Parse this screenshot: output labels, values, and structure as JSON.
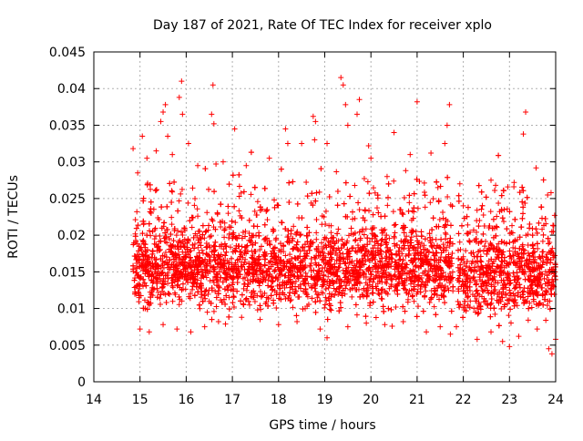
{
  "chart_data": {
    "type": "scatter",
    "title": "Day 187 of 2021, Rate Of TEC Index for receiver xplo",
    "xlabel": "GPS time / hours",
    "ylabel": "ROTI / TECUs",
    "xlim": [
      14,
      24
    ],
    "ylim": [
      0,
      0.045
    ],
    "x_ticks": [
      "14",
      "15",
      "16",
      "17",
      "18",
      "19",
      "20",
      "21",
      "22",
      "23",
      "24"
    ],
    "y_ticks": [
      "0",
      "0.005",
      "0.01",
      "0.015",
      "0.02",
      "0.025",
      "0.03",
      "0.035",
      "0.04",
      "0.045"
    ],
    "grid": true,
    "marker": "plus",
    "color": "#ff0000",
    "series": [
      {
        "name": "ROTI",
        "points": [
          [
            14.85,
            0.0318
          ],
          [
            14.95,
            0.0285
          ],
          [
            15.05,
            0.0335
          ],
          [
            15.15,
            0.0305
          ],
          [
            15.35,
            0.0315
          ],
          [
            15.45,
            0.0355
          ],
          [
            15.5,
            0.0368
          ],
          [
            15.55,
            0.0378
          ],
          [
            15.6,
            0.0335
          ],
          [
            15.7,
            0.031
          ],
          [
            15.85,
            0.0388
          ],
          [
            15.9,
            0.041
          ],
          [
            15.92,
            0.0365
          ],
          [
            16.05,
            0.0325
          ],
          [
            16.25,
            0.0295
          ],
          [
            16.55,
            0.0365
          ],
          [
            16.58,
            0.0405
          ],
          [
            16.6,
            0.0352
          ],
          [
            16.8,
            0.03
          ],
          [
            17.05,
            0.0345
          ],
          [
            17.3,
            0.0295
          ],
          [
            17.8,
            0.0305
          ],
          [
            18.15,
            0.0345
          ],
          [
            18.2,
            0.0325
          ],
          [
            18.5,
            0.0325
          ],
          [
            18.75,
            0.0362
          ],
          [
            18.8,
            0.0355
          ],
          [
            18.78,
            0.033
          ],
          [
            19.05,
            0.0325
          ],
          [
            19.35,
            0.0415
          ],
          [
            19.4,
            0.0405
          ],
          [
            19.45,
            0.0378
          ],
          [
            19.5,
            0.035
          ],
          [
            19.7,
            0.0365
          ],
          [
            19.75,
            0.0385
          ],
          [
            19.95,
            0.0322
          ],
          [
            20.0,
            0.0305
          ],
          [
            20.35,
            0.028
          ],
          [
            20.5,
            0.034
          ],
          [
            20.85,
            0.031
          ],
          [
            21.0,
            0.0382
          ],
          [
            21.3,
            0.0312
          ],
          [
            21.45,
            0.0265
          ],
          [
            21.6,
            0.0325
          ],
          [
            21.7,
            0.0378
          ],
          [
            21.65,
            0.035
          ],
          [
            22.6,
            0.0275
          ],
          [
            22.7,
            0.0268
          ],
          [
            23.1,
            0.0272
          ],
          [
            23.35,
            0.0368
          ],
          [
            23.3,
            0.0338
          ],
          [
            23.9,
            0.0258
          ],
          [
            15.0,
            0.0072
          ],
          [
            15.2,
            0.0068
          ],
          [
            15.5,
            0.0078
          ],
          [
            15.8,
            0.0072
          ],
          [
            16.1,
            0.0068
          ],
          [
            16.4,
            0.0075
          ],
          [
            16.7,
            0.0082
          ],
          [
            17.2,
            0.0088
          ],
          [
            17.6,
            0.0085
          ],
          [
            18.0,
            0.0078
          ],
          [
            18.4,
            0.0082
          ],
          [
            18.9,
            0.0072
          ],
          [
            19.05,
            0.006
          ],
          [
            19.5,
            0.0075
          ],
          [
            19.9,
            0.008
          ],
          [
            20.3,
            0.0078
          ],
          [
            20.7,
            0.0082
          ],
          [
            21.2,
            0.0068
          ],
          [
            21.5,
            0.0075
          ],
          [
            21.85,
            0.0075
          ],
          [
            22.3,
            0.0058
          ],
          [
            22.6,
            0.0068
          ],
          [
            22.85,
            0.0055
          ],
          [
            23.0,
            0.0048
          ],
          [
            23.2,
            0.0062
          ],
          [
            23.6,
            0.0072
          ],
          [
            23.85,
            0.0045
          ],
          [
            23.92,
            0.0038
          ],
          [
            24.0,
            0.0058
          ],
          [
            21.72,
            0.0065
          ],
          [
            22.0,
            0.024
          ],
          [
            22.35,
            0.022
          ],
          [
            23.95,
            0.0205
          ]
        ]
      }
    ]
  }
}
